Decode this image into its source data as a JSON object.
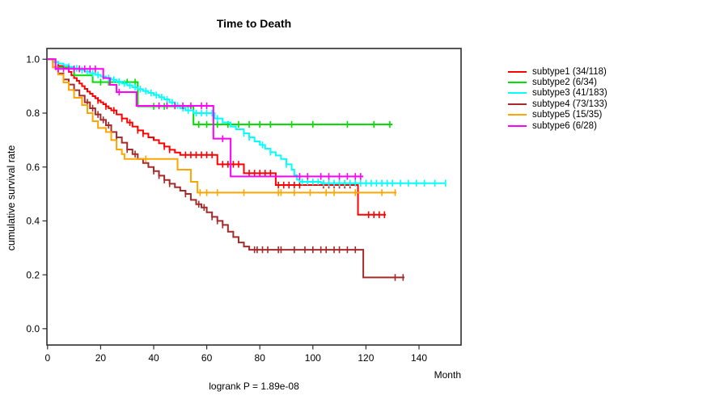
{
  "title": "Time to Death",
  "footnote": "logrank P = 1.89e-08",
  "chart_data": {
    "type": "line",
    "variant": "kaplan-meier-step",
    "title": "Time to Death",
    "xlabel": "Month",
    "ylabel": "cumulative survival rate",
    "xlim": [
      0,
      155
    ],
    "ylim": [
      0,
      1.0
    ],
    "x_ticks": [
      0,
      20,
      40,
      60,
      80,
      100,
      120,
      140
    ],
    "y_ticks": [
      0.0,
      0.2,
      0.4,
      0.6,
      0.8,
      1.0
    ],
    "grid": false,
    "legend_position": "right-outside",
    "axis_color": "#2e2e2e",
    "series": [
      {
        "name": "subtype1",
        "label": "subtype1 (34/118)",
        "color": "#FF0000",
        "steps": [
          [
            0,
            1.0
          ],
          [
            2,
            0.99
          ],
          [
            4,
            0.975
          ],
          [
            6,
            0.966
          ],
          [
            8,
            0.953
          ],
          [
            9,
            0.94
          ],
          [
            10,
            0.93
          ],
          [
            11,
            0.92
          ],
          [
            12,
            0.91
          ],
          [
            13,
            0.9
          ],
          [
            14,
            0.89
          ],
          [
            15,
            0.88
          ],
          [
            16,
            0.872
          ],
          [
            17,
            0.863
          ],
          [
            18,
            0.855
          ],
          [
            19,
            0.847
          ],
          [
            20,
            0.84
          ],
          [
            21,
            0.833
          ],
          [
            22,
            0.825
          ],
          [
            23,
            0.818
          ],
          [
            24,
            0.81
          ],
          [
            26,
            0.795
          ],
          [
            28,
            0.78
          ],
          [
            30,
            0.765
          ],
          [
            32,
            0.75
          ],
          [
            34,
            0.736
          ],
          [
            36,
            0.724
          ],
          [
            38,
            0.71
          ],
          [
            40,
            0.7
          ],
          [
            42,
            0.688
          ],
          [
            44,
            0.676
          ],
          [
            46,
            0.664
          ],
          [
            48,
            0.654
          ],
          [
            50,
            0.645
          ],
          [
            64,
            0.61
          ],
          [
            74,
            0.577
          ],
          [
            86,
            0.533
          ],
          [
            117,
            0.423
          ]
        ],
        "end": 127.5,
        "censors": [
          19,
          22,
          25,
          28,
          31,
          34,
          36,
          44,
          46,
          52,
          54,
          56,
          58,
          60,
          62,
          66,
          68,
          70,
          72,
          76,
          78,
          80,
          82,
          84,
          87,
          89,
          91,
          93,
          95,
          104,
          106,
          108,
          110,
          112,
          114,
          121,
          123,
          125,
          127
        ]
      },
      {
        "name": "subtype2",
        "label": "subtype2 (6/34)",
        "color": "#00DF00",
        "steps": [
          [
            0,
            1.0
          ],
          [
            3,
            0.97
          ],
          [
            10,
            0.94
          ],
          [
            17,
            0.915
          ],
          [
            34,
            0.825
          ],
          [
            55,
            0.758
          ]
        ],
        "end": 130,
        "censors": [
          20,
          23,
          27,
          30,
          33,
          40,
          44,
          57,
          60,
          64,
          68,
          72,
          76,
          80,
          84,
          92,
          100,
          113,
          123,
          129
        ]
      },
      {
        "name": "subtype3",
        "label": "subtype3 (41/183)",
        "color": "#00FFFF",
        "steps": [
          [
            0,
            1.0
          ],
          [
            2,
            0.99
          ],
          [
            4,
            0.984
          ],
          [
            6,
            0.978
          ],
          [
            8,
            0.972
          ],
          [
            10,
            0.966
          ],
          [
            12,
            0.96
          ],
          [
            14,
            0.954
          ],
          [
            16,
            0.948
          ],
          [
            18,
            0.942
          ],
          [
            20,
            0.936
          ],
          [
            22,
            0.93
          ],
          [
            24,
            0.924
          ],
          [
            26,
            0.917
          ],
          [
            28,
            0.91
          ],
          [
            30,
            0.903
          ],
          [
            32,
            0.896
          ],
          [
            34,
            0.889
          ],
          [
            36,
            0.882
          ],
          [
            38,
            0.875
          ],
          [
            40,
            0.867
          ],
          [
            42,
            0.859
          ],
          [
            44,
            0.851
          ],
          [
            46,
            0.84
          ],
          [
            48,
            0.828
          ],
          [
            50,
            0.818
          ],
          [
            52,
            0.81
          ],
          [
            55,
            0.8
          ],
          [
            63,
            0.78
          ],
          [
            66,
            0.765
          ],
          [
            69,
            0.75
          ],
          [
            71,
            0.74
          ],
          [
            74,
            0.725
          ],
          [
            76,
            0.71
          ],
          [
            78,
            0.695
          ],
          [
            80,
            0.682
          ],
          [
            82,
            0.668
          ],
          [
            84,
            0.655
          ],
          [
            86,
            0.643
          ],
          [
            88,
            0.63
          ],
          [
            90,
            0.61
          ],
          [
            92,
            0.59
          ],
          [
            93,
            0.57
          ],
          [
            94,
            0.553
          ],
          [
            95,
            0.545
          ],
          [
            103,
            0.54
          ]
        ],
        "end": 150,
        "censors": [
          8,
          11,
          13,
          15,
          17,
          19,
          21,
          23,
          25,
          27,
          29,
          31,
          33,
          35,
          37,
          39,
          41,
          43,
          45,
          47,
          49,
          51,
          53,
          56,
          58,
          60,
          62,
          64,
          74,
          76,
          81,
          84,
          90,
          96,
          98,
          100,
          102,
          104,
          106,
          108,
          110,
          112,
          114,
          116,
          118,
          120,
          122,
          124,
          126,
          128,
          130,
          133,
          136,
          139,
          142,
          146,
          150
        ]
      },
      {
        "name": "subtype4",
        "label": "subtype4 (73/133)",
        "color": "#A52A2A",
        "steps": [
          [
            0,
            1.0
          ],
          [
            2,
            0.97
          ],
          [
            4,
            0.947
          ],
          [
            6,
            0.925
          ],
          [
            8,
            0.906
          ],
          [
            10,
            0.885
          ],
          [
            12,
            0.865
          ],
          [
            14,
            0.84
          ],
          [
            16,
            0.818
          ],
          [
            18,
            0.795
          ],
          [
            20,
            0.775
          ],
          [
            22,
            0.755
          ],
          [
            24,
            0.73
          ],
          [
            26,
            0.71
          ],
          [
            28,
            0.69
          ],
          [
            30,
            0.665
          ],
          [
            32,
            0.648
          ],
          [
            34,
            0.63
          ],
          [
            36,
            0.615
          ],
          [
            38,
            0.6
          ],
          [
            40,
            0.585
          ],
          [
            42,
            0.568
          ],
          [
            44,
            0.552
          ],
          [
            46,
            0.538
          ],
          [
            48,
            0.525
          ],
          [
            50,
            0.512
          ],
          [
            52,
            0.5
          ],
          [
            54,
            0.478
          ],
          [
            56,
            0.462
          ],
          [
            58,
            0.45
          ],
          [
            60,
            0.432
          ],
          [
            62,
            0.415
          ],
          [
            64,
            0.4
          ],
          [
            66,
            0.385
          ],
          [
            68,
            0.36
          ],
          [
            70,
            0.34
          ],
          [
            72,
            0.32
          ],
          [
            74,
            0.305
          ],
          [
            76,
            0.293
          ],
          [
            119,
            0.19
          ]
        ],
        "end": 134.5,
        "censors": [
          15,
          17,
          19,
          21,
          23,
          26,
          30,
          33,
          40,
          42,
          44,
          46,
          52,
          57,
          59,
          62,
          64,
          66,
          78,
          79,
          81,
          83,
          87,
          88,
          93,
          97,
          100,
          103,
          105,
          108,
          110,
          113,
          116,
          131,
          134
        ]
      },
      {
        "name": "subtype5",
        "label": "subtype5 (15/35)",
        "color": "#FFA500",
        "steps": [
          [
            0,
            1.0
          ],
          [
            2,
            0.971
          ],
          [
            4,
            0.943
          ],
          [
            6,
            0.914
          ],
          [
            8,
            0.886
          ],
          [
            10,
            0.857
          ],
          [
            13,
            0.83
          ],
          [
            15,
            0.8
          ],
          [
            17,
            0.77
          ],
          [
            19,
            0.745
          ],
          [
            22,
            0.73
          ],
          [
            24,
            0.7
          ],
          [
            26,
            0.665
          ],
          [
            28,
            0.648
          ],
          [
            29,
            0.63
          ],
          [
            49,
            0.59
          ],
          [
            54,
            0.545
          ],
          [
            56.5,
            0.505
          ]
        ],
        "end": 131.5,
        "censors": [
          3,
          37,
          57.5,
          60,
          64,
          74,
          87,
          88,
          93,
          99,
          105,
          108,
          116,
          126,
          131
        ]
      },
      {
        "name": "subtype6",
        "label": "subtype6 (6/28)",
        "color": "#FF00FF",
        "steps": [
          [
            0,
            1.0
          ],
          [
            3,
            0.964
          ],
          [
            21,
            0.93
          ],
          [
            23.5,
            0.905
          ],
          [
            26,
            0.878
          ],
          [
            33.5,
            0.827
          ],
          [
            62.5,
            0.705
          ],
          [
            69,
            0.565
          ]
        ],
        "end": 119,
        "censors": [
          4,
          6,
          8,
          10,
          12,
          14,
          16,
          18,
          27,
          42,
          45,
          48,
          51,
          54,
          58,
          60,
          66,
          95,
          98,
          103,
          106,
          110,
          113,
          116,
          118
        ]
      }
    ]
  }
}
